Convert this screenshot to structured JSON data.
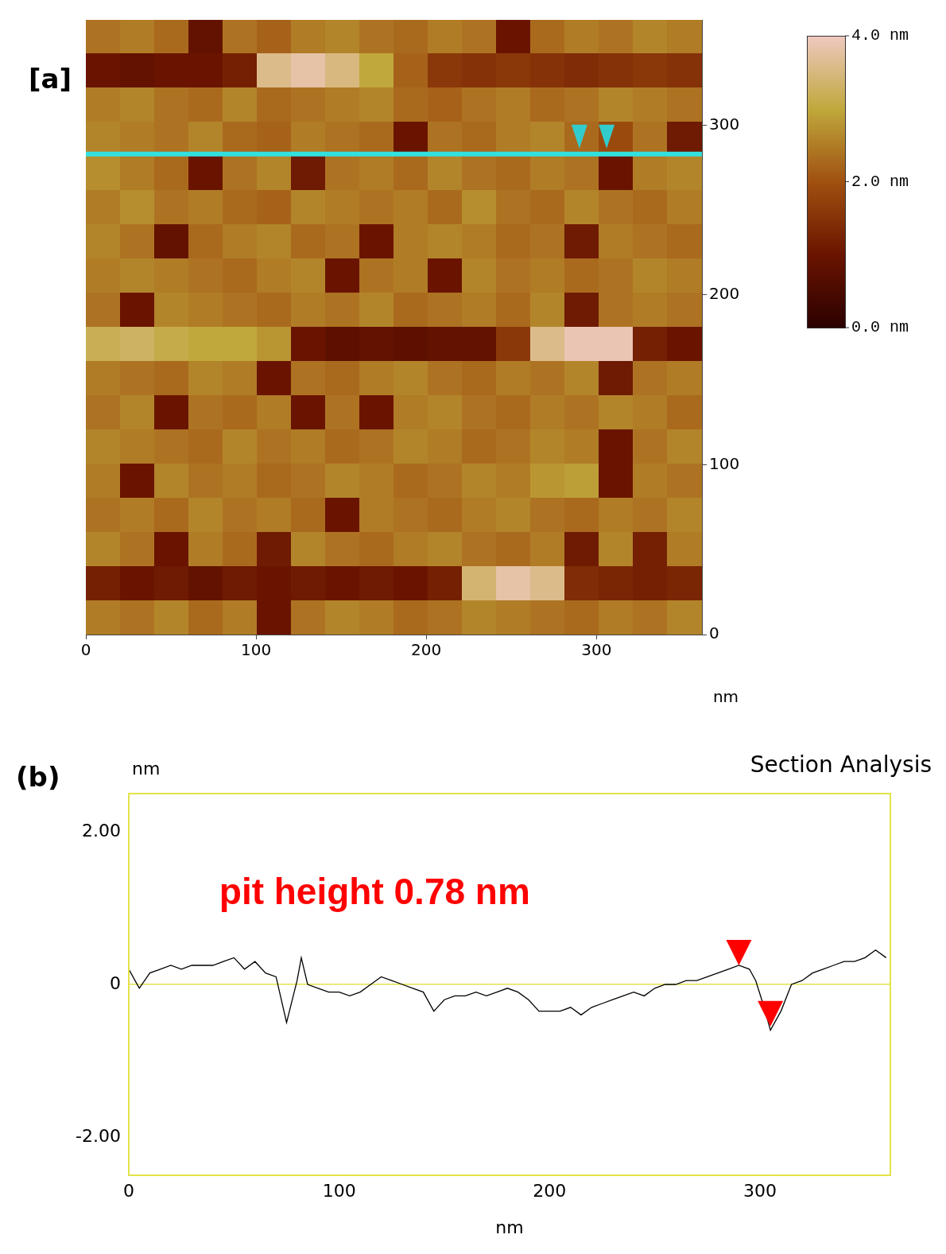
{
  "chart_data": [
    {
      "type": "heatmap",
      "panel": "[a]",
      "xlim": [
        0,
        362
      ],
      "ylim": [
        0,
        362
      ],
      "xticks": [
        0,
        100,
        200,
        300
      ],
      "yticks": [
        0,
        100,
        200,
        300
      ],
      "x_label": "nm",
      "z": [
        [
          2.4,
          2.5,
          2.3,
          0.9,
          2.4,
          2.2,
          2.5,
          2.6,
          2.4,
          2.3,
          2.5,
          2.4,
          1.0,
          2.3,
          2.5,
          2.4,
          2.6,
          2.5
        ],
        [
          1.0,
          0.9,
          1.0,
          1.0,
          1.2,
          3.6,
          3.8,
          3.5,
          3.0,
          2.2,
          1.6,
          1.5,
          1.6,
          1.5,
          1.4,
          1.5,
          1.6,
          1.5
        ],
        [
          2.5,
          2.6,
          2.4,
          2.3,
          2.6,
          2.3,
          2.4,
          2.5,
          2.6,
          2.3,
          2.2,
          2.4,
          2.5,
          2.3,
          2.4,
          2.6,
          2.5,
          2.4
        ],
        [
          2.6,
          2.5,
          2.4,
          2.6,
          2.3,
          2.2,
          2.5,
          2.4,
          2.3,
          1.0,
          2.4,
          2.3,
          2.5,
          2.6,
          2.3,
          1.9,
          2.4,
          1.1
        ],
        [
          2.7,
          2.5,
          2.3,
          1.0,
          2.4,
          2.6,
          1.1,
          2.4,
          2.5,
          2.3,
          2.6,
          2.4,
          2.3,
          2.5,
          2.4,
          1.0,
          2.5,
          2.6
        ],
        [
          2.5,
          2.7,
          2.4,
          2.5,
          2.3,
          2.2,
          2.6,
          2.5,
          2.4,
          2.5,
          2.3,
          2.7,
          2.4,
          2.3,
          2.6,
          2.4,
          2.3,
          2.5
        ],
        [
          2.6,
          2.4,
          0.9,
          2.3,
          2.5,
          2.6,
          2.3,
          2.4,
          1.0,
          2.5,
          2.6,
          2.5,
          2.3,
          2.4,
          1.1,
          2.5,
          2.4,
          2.3
        ],
        [
          2.5,
          2.6,
          2.5,
          2.4,
          2.3,
          2.5,
          2.6,
          1.0,
          2.4,
          2.5,
          1.0,
          2.6,
          2.4,
          2.5,
          2.3,
          2.4,
          2.6,
          2.5
        ],
        [
          2.4,
          1.0,
          2.6,
          2.5,
          2.4,
          2.3,
          2.5,
          2.4,
          2.6,
          2.3,
          2.4,
          2.5,
          2.3,
          2.6,
          1.1,
          2.4,
          2.5,
          2.4
        ],
        [
          3.2,
          3.3,
          3.1,
          3.0,
          3.0,
          2.8,
          1.0,
          0.8,
          0.9,
          0.8,
          0.9,
          0.9,
          1.6,
          3.6,
          3.9,
          3.9,
          1.2,
          1.0
        ],
        [
          2.5,
          2.4,
          2.3,
          2.6,
          2.5,
          1.0,
          2.4,
          2.3,
          2.5,
          2.6,
          2.4,
          2.3,
          2.5,
          2.4,
          2.6,
          1.1,
          2.4,
          2.5
        ],
        [
          2.4,
          2.6,
          1.0,
          2.4,
          2.3,
          2.5,
          1.0,
          2.4,
          1.0,
          2.5,
          2.6,
          2.4,
          2.3,
          2.5,
          2.4,
          2.6,
          2.5,
          2.3
        ],
        [
          2.6,
          2.5,
          2.4,
          2.3,
          2.6,
          2.4,
          2.5,
          2.3,
          2.4,
          2.6,
          2.5,
          2.3,
          2.4,
          2.6,
          2.5,
          1.0,
          2.4,
          2.6
        ],
        [
          2.5,
          1.0,
          2.6,
          2.4,
          2.5,
          2.3,
          2.4,
          2.6,
          2.5,
          2.3,
          2.4,
          2.6,
          2.5,
          2.8,
          2.9,
          1.0,
          2.5,
          2.4
        ],
        [
          2.4,
          2.5,
          2.3,
          2.6,
          2.4,
          2.5,
          2.3,
          1.0,
          2.5,
          2.4,
          2.3,
          2.5,
          2.6,
          2.4,
          2.3,
          2.5,
          2.4,
          2.6
        ],
        [
          2.6,
          2.4,
          1.0,
          2.5,
          2.3,
          1.1,
          2.6,
          2.4,
          2.3,
          2.5,
          2.6,
          2.4,
          2.3,
          2.5,
          1.1,
          2.6,
          1.2,
          2.5
        ],
        [
          1.2,
          1.0,
          1.1,
          0.9,
          1.1,
          1.0,
          1.1,
          1.0,
          1.1,
          1.0,
          1.2,
          3.4,
          3.8,
          3.6,
          1.4,
          1.3,
          1.2,
          1.3
        ],
        [
          2.5,
          2.4,
          2.6,
          2.3,
          2.5,
          1.0,
          2.4,
          2.6,
          2.5,
          2.3,
          2.4,
          2.6,
          2.5,
          2.4,
          2.3,
          2.5,
          2.4,
          2.6
        ]
      ],
      "colorbar": {
        "range": [
          0,
          4
        ],
        "ticks": [
          {
            "value": 4,
            "label": "4.0 nm"
          },
          {
            "value": 2,
            "label": "2.0 nm"
          },
          {
            "value": 0,
            "label": "0.0 nm"
          }
        ]
      },
      "section_line": {
        "y": 283,
        "color": "#33e0e0"
      },
      "markers": {
        "x": [
          290,
          306
        ],
        "color": "#33cccc"
      }
    },
    {
      "type": "line",
      "panel": "(b)",
      "title": "Section Analysis",
      "x_label": "nm",
      "y_label": "nm",
      "xlim": [
        0,
        362
      ],
      "ylim": [
        -2.5,
        2.5
      ],
      "xticks": [
        0,
        100,
        200,
        300
      ],
      "yticks": [
        {
          "value": -2,
          "label": "-2.00"
        },
        0,
        {
          "value": 2,
          "label": "2.00"
        }
      ],
      "series": [
        {
          "color": "#000000",
          "x": [
            0,
            5,
            10,
            15,
            20,
            25,
            30,
            35,
            40,
            45,
            50,
            55,
            60,
            65,
            70,
            75,
            80,
            82,
            85,
            90,
            95,
            100,
            105,
            110,
            115,
            120,
            125,
            130,
            135,
            140,
            145,
            150,
            155,
            160,
            165,
            170,
            175,
            180,
            185,
            190,
            195,
            200,
            205,
            210,
            215,
            220,
            225,
            230,
            235,
            240,
            245,
            250,
            255,
            260,
            265,
            270,
            275,
            280,
            285,
            290,
            295,
            298,
            302,
            305,
            310,
            315,
            320,
            325,
            330,
            335,
            340,
            345,
            350,
            355,
            360
          ],
          "values": [
            0.2,
            -0.05,
            0.15,
            0.2,
            0.25,
            0.2,
            0.25,
            0.25,
            0.25,
            0.3,
            0.35,
            0.2,
            0.3,
            0.15,
            0.1,
            -0.5,
            0.05,
            0.35,
            0,
            -0.05,
            -0.1,
            -0.1,
            -0.15,
            -0.1,
            0,
            0.1,
            0.05,
            0,
            -0.05,
            -0.1,
            -0.35,
            -0.2,
            -0.15,
            -0.15,
            -0.1,
            -0.15,
            -0.1,
            -0.05,
            -0.1,
            -0.2,
            -0.35,
            -0.35,
            -0.35,
            -0.3,
            -0.4,
            -0.3,
            -0.25,
            -0.2,
            -0.15,
            -0.1,
            -0.15,
            -0.05,
            0,
            0,
            0.05,
            0.05,
            0.1,
            0.15,
            0.2,
            0.25,
            0.2,
            0.05,
            -0.3,
            -0.6,
            -0.35,
            0,
            0.05,
            0.15,
            0.2,
            0.25,
            0.3,
            0.3,
            0.35,
            0.45,
            0.35
          ]
        }
      ],
      "markers": {
        "x": [
          290,
          305
        ],
        "y": [
          0.25,
          -0.55
        ],
        "color": "#ff0000"
      },
      "annotations": [
        {
          "text": "pit height 0.78 nm",
          "x": 43,
          "y": 1.18,
          "color": "#ff0000"
        }
      ]
    }
  ]
}
